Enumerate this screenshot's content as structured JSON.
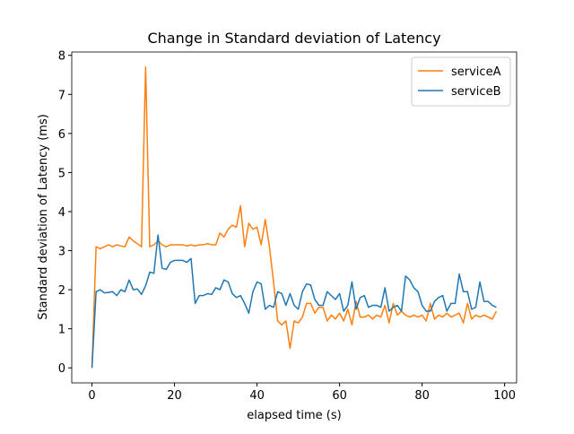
{
  "chart_data": {
    "type": "line",
    "title": "Change in Standard deviation of Latency",
    "x_label": "elapsed time (s)",
    "y_label": "Standard deviation of Latency (ms)",
    "x": [
      0,
      1,
      2,
      3,
      4,
      5,
      6,
      7,
      8,
      9,
      10,
      11,
      12,
      13,
      14,
      15,
      16,
      17,
      18,
      19,
      20,
      21,
      22,
      23,
      24,
      25,
      26,
      27,
      28,
      29,
      30,
      31,
      32,
      33,
      34,
      35,
      36,
      37,
      38,
      39,
      40,
      41,
      42,
      43,
      44,
      45,
      46,
      47,
      48,
      49,
      50,
      51,
      52,
      53,
      54,
      55,
      56,
      57,
      58,
      59,
      60,
      61,
      62,
      63,
      64,
      65,
      66,
      67,
      68,
      69,
      70,
      71,
      72,
      73,
      74,
      75,
      76,
      77,
      78,
      79,
      80,
      81,
      82,
      83,
      84,
      85,
      86,
      87,
      88,
      89,
      90,
      91,
      92,
      93,
      94,
      95,
      96,
      97,
      98
    ],
    "series": [
      {
        "name": "serviceA",
        "color": "#ff7f0e",
        "values": [
          0,
          3.1,
          3.05,
          3.1,
          3.15,
          3.1,
          3.15,
          3.12,
          3.1,
          3.35,
          3.25,
          3.18,
          3.1,
          7.7,
          3.1,
          3.15,
          3.25,
          3.15,
          3.1,
          3.15,
          3.15,
          3.15,
          3.15,
          3.12,
          3.15,
          3.12,
          3.15,
          3.15,
          3.18,
          3.15,
          3.15,
          3.45,
          3.35,
          3.55,
          3.65,
          3.6,
          4.15,
          3.1,
          3.7,
          3.55,
          3.6,
          3.15,
          3.8,
          3.1,
          2.2,
          1.2,
          1.1,
          1.2,
          0.5,
          1.2,
          1.15,
          1.3,
          1.65,
          1.65,
          1.4,
          1.55,
          1.55,
          1.2,
          1.35,
          1.25,
          1.4,
          1.2,
          1.5,
          1.1,
          1.7,
          1.3,
          1.3,
          1.35,
          1.25,
          1.35,
          1.3,
          1.6,
          1.15,
          1.65,
          1.35,
          1.45,
          1.35,
          1.3,
          1.35,
          1.3,
          1.35,
          1.2,
          1.65,
          1.25,
          1.35,
          1.3,
          1.4,
          1.3,
          1.35,
          1.4,
          1.15,
          1.65,
          1.25,
          1.35,
          1.3,
          1.35,
          1.3,
          1.25,
          1.45
        ]
      },
      {
        "name": "serviceB",
        "color": "#1f77b4",
        "values": [
          0,
          1.95,
          2.0,
          1.92,
          1.93,
          1.95,
          1.85,
          2.0,
          1.95,
          2.25,
          2.0,
          2.02,
          1.88,
          2.1,
          2.45,
          2.42,
          3.4,
          2.55,
          2.52,
          2.7,
          2.75,
          2.75,
          2.75,
          2.7,
          2.8,
          1.65,
          1.85,
          1.85,
          1.9,
          1.88,
          2.05,
          2.0,
          2.25,
          2.2,
          1.9,
          1.8,
          1.85,
          1.65,
          1.4,
          1.95,
          2.2,
          2.15,
          1.5,
          1.6,
          1.55,
          1.95,
          1.9,
          1.6,
          1.9,
          1.6,
          1.5,
          1.95,
          2.15,
          2.12,
          1.75,
          1.6,
          1.6,
          1.95,
          1.85,
          1.75,
          1.9,
          1.45,
          1.6,
          2.2,
          1.5,
          1.8,
          1.85,
          1.55,
          1.6,
          1.6,
          1.55,
          2.05,
          1.45,
          1.55,
          1.6,
          1.45,
          2.35,
          2.25,
          2.05,
          1.95,
          1.6,
          1.45,
          1.45,
          1.7,
          1.8,
          1.85,
          1.45,
          1.65,
          1.65,
          2.4,
          1.95,
          1.95,
          1.5,
          1.55,
          2.2,
          1.7,
          1.7,
          1.6,
          1.55
        ]
      }
    ],
    "xlim": [
      -4.9,
      102.9
    ],
    "ylim": [
      -0.385,
      8.085
    ],
    "xticks": [
      0,
      20,
      40,
      60,
      80,
      100
    ],
    "yticks": [
      0,
      1,
      2,
      3,
      4,
      5,
      6,
      7,
      8
    ],
    "legend": "upper right",
    "grid": false
  }
}
